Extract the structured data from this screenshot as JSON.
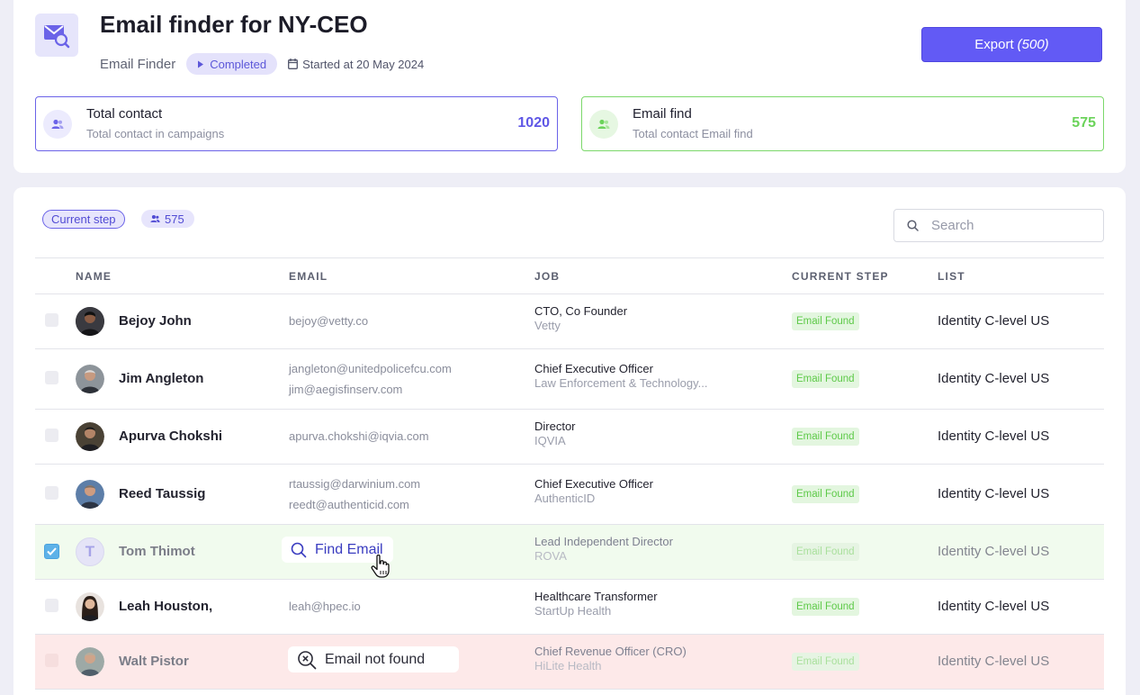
{
  "header": {
    "title": "Email finder for NY-CEO",
    "type_label": "Email Finder",
    "status": "Completed",
    "started": "Started at 20 May 2024",
    "export_label": "Export",
    "export_count": "(500)"
  },
  "stats": {
    "total": {
      "title": "Total contact",
      "subtitle": "Total contact in campaigns",
      "value": "1020"
    },
    "found": {
      "title": "Email find",
      "subtitle": "Total contact Email find",
      "value": "575"
    }
  },
  "toolbar": {
    "current_step": "Current step",
    "count": "575",
    "search_placeholder": "Search"
  },
  "columns": [
    "NAME",
    "EMAIL",
    "JOB",
    "CURRENT STEP",
    "LIST"
  ],
  "rows": [
    {
      "name": "Bejoy John",
      "emails": [
        "bejoy@vetty.co"
      ],
      "job_title": "CTO, Co Founder",
      "company": "Vetty",
      "step": "Email Found",
      "list": "Identity C-level US"
    },
    {
      "name": "Jim Angleton",
      "emails": [
        "jangleton@unitedpolicefcu.com",
        "jim@aegisfinserv.com"
      ],
      "job_title": "Chief Executive Officer",
      "company": "Law Enforcement & Technology...",
      "step": "Email Found",
      "list": "Identity C-level US"
    },
    {
      "name": "Apurva Chokshi",
      "emails": [
        "apurva.chokshi@iqvia.com"
      ],
      "job_title": "Director",
      "company": "IQVIA",
      "step": "Email Found",
      "list": "Identity C-level US"
    },
    {
      "name": "Reed Taussig",
      "emails": [
        "rtaussig@darwinium.com",
        "reedt@authenticid.com"
      ],
      "job_title": "Chief Executive Officer",
      "company": "AuthenticID",
      "step": "Email Found",
      "list": "Identity C-level US"
    },
    {
      "name": "Tom Thimot",
      "avatar_initial": "T",
      "action": "Find Email",
      "job_title": "Lead Independent Director",
      "company": "ROVA",
      "step": "Email Found",
      "list": "Identity C-level US"
    },
    {
      "name": "Leah Houston,",
      "emails": [
        "leah@hpec.io"
      ],
      "job_title": "Healthcare Transformer",
      "company": "StartUp Health",
      "step": "Email Found",
      "list": "Identity C-level US"
    },
    {
      "name": "Walt Pistor",
      "action": "Email not found",
      "job_title": "Chief Revenue Officer (CRO)",
      "company": "HiLite Health",
      "step": "Email Found",
      "list": "Identity C-level US"
    }
  ],
  "colors": {
    "accent": "#625af5",
    "success": "#6bd35a",
    "selected_row": "#f1fbee",
    "error_row": "#fde9e9"
  },
  "icons": {
    "app": "mail-search-icon",
    "status": "play-icon",
    "date": "calendar-icon",
    "stat": "user-group-icon",
    "search": "search-icon",
    "cursor": "hand-pointer-icon",
    "not_found": "search-x-icon"
  }
}
